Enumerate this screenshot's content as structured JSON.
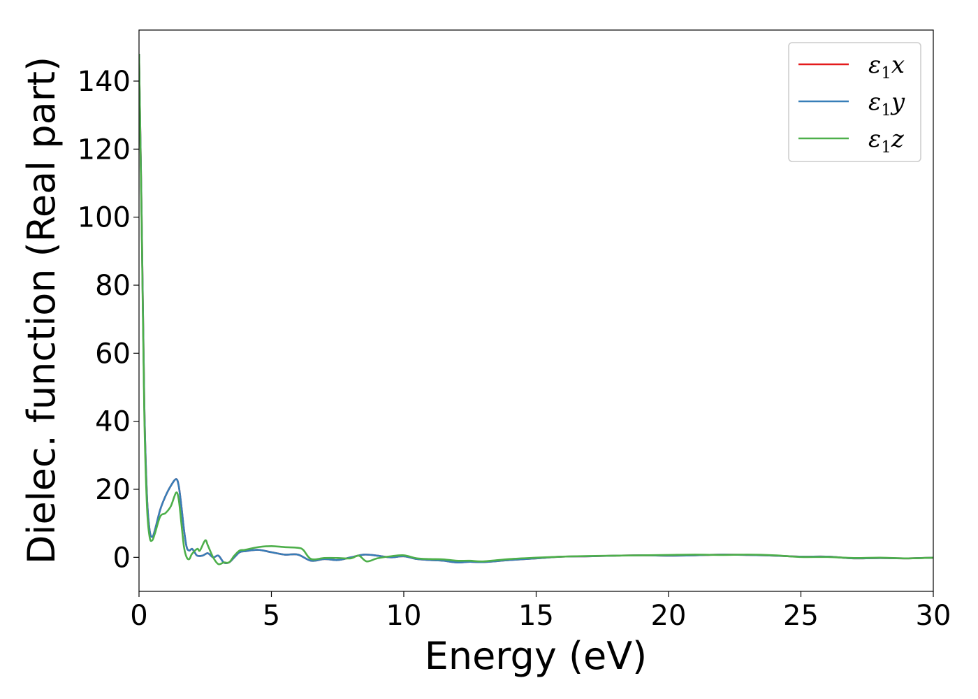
{
  "chart_data": {
    "type": "line",
    "title": "",
    "xlabel": "Energy (eV)",
    "ylabel": "Dielec. function (Real part)",
    "xlim": [
      0,
      30
    ],
    "ylim": [
      -10,
      155
    ],
    "xticks": [
      0,
      5,
      10,
      15,
      20,
      25,
      30
    ],
    "yticks": [
      0,
      20,
      40,
      60,
      80,
      100,
      120,
      140
    ],
    "grid": false,
    "legend_position": "top-right",
    "series": [
      {
        "name": "ε1x",
        "name_parts": {
          "base": "ε",
          "sub": "1",
          "axis": "x"
        },
        "color": "#e41a1c",
        "x": [
          0.0,
          0.1,
          0.2,
          0.3,
          0.4,
          0.5,
          0.6,
          0.8,
          1.0,
          1.2,
          1.4,
          1.5,
          1.6,
          1.7,
          1.8,
          1.9,
          2.0,
          2.1,
          2.2,
          2.4,
          2.6,
          2.8,
          3.0,
          3.2,
          3.4,
          3.6,
          3.8,
          4.0,
          4.5,
          5.0,
          5.5,
          6.0,
          6.5,
          7.0,
          7.5,
          8.0,
          8.5,
          9.0,
          9.5,
          10.0,
          10.5,
          11.0,
          11.5,
          12.0,
          12.5,
          13.0,
          14.0,
          15.0,
          16.0,
          17.0,
          18.0,
          19.0,
          20.0,
          21.0,
          22.0,
          23.0,
          24.0,
          25.0,
          26.0,
          27.0,
          28.0,
          29.0,
          30.0
        ],
        "values": [
          148,
          100,
          45,
          18,
          8,
          6,
          8,
          14,
          18,
          21,
          23,
          21,
          15,
          8,
          3,
          2,
          2.5,
          1.5,
          0.5,
          0.5,
          1.2,
          0,
          0.5,
          -1.5,
          -1.5,
          0,
          1.5,
          1.8,
          2.2,
          1.5,
          0.8,
          0.8,
          -1,
          -0.5,
          -0.8,
          0,
          0.8,
          0.5,
          0,
          0.3,
          -0.5,
          -0.8,
          -1,
          -1.5,
          -1.3,
          -1.4,
          -0.8,
          -0.3,
          0.2,
          0.3,
          0.5,
          0.6,
          0.5,
          0.6,
          0.8,
          0.7,
          0.5,
          0.2,
          0.2,
          -0.3,
          -0.2,
          -0.3,
          -0.1
        ]
      },
      {
        "name": "ε1y",
        "name_parts": {
          "base": "ε",
          "sub": "1",
          "axis": "y"
        },
        "color": "#377eb8",
        "x": [
          0.0,
          0.1,
          0.2,
          0.3,
          0.4,
          0.5,
          0.6,
          0.8,
          1.0,
          1.2,
          1.4,
          1.5,
          1.6,
          1.7,
          1.8,
          1.9,
          2.0,
          2.1,
          2.2,
          2.4,
          2.6,
          2.8,
          3.0,
          3.2,
          3.4,
          3.6,
          3.8,
          4.0,
          4.5,
          5.0,
          5.5,
          6.0,
          6.5,
          7.0,
          7.5,
          8.0,
          8.5,
          9.0,
          9.5,
          10.0,
          10.5,
          11.0,
          11.5,
          12.0,
          12.5,
          13.0,
          14.0,
          15.0,
          16.0,
          17.0,
          18.0,
          19.0,
          20.0,
          21.0,
          22.0,
          23.0,
          24.0,
          25.0,
          26.0,
          27.0,
          28.0,
          29.0,
          30.0
        ],
        "values": [
          148,
          100,
          45,
          18,
          8,
          6,
          8,
          14,
          18,
          21,
          23,
          21,
          15,
          8,
          3,
          2,
          2.5,
          1.5,
          0.5,
          0.5,
          1.2,
          0,
          0.5,
          -1.5,
          -1.5,
          0,
          1.5,
          1.8,
          2.2,
          1.5,
          0.8,
          0.8,
          -1,
          -0.5,
          -0.8,
          0,
          0.8,
          0.5,
          0,
          0.3,
          -0.5,
          -0.8,
          -1,
          -1.5,
          -1.3,
          -1.4,
          -0.8,
          -0.3,
          0.2,
          0.3,
          0.5,
          0.6,
          0.5,
          0.6,
          0.8,
          0.7,
          0.5,
          0.2,
          0.2,
          -0.3,
          -0.2,
          -0.3,
          -0.1
        ]
      },
      {
        "name": "ε1z",
        "name_parts": {
          "base": "ε",
          "sub": "1",
          "axis": "z"
        },
        "color": "#4daf4a",
        "x": [
          0.0,
          0.1,
          0.2,
          0.3,
          0.4,
          0.5,
          0.6,
          0.8,
          1.0,
          1.2,
          1.4,
          1.5,
          1.6,
          1.7,
          1.8,
          1.9,
          2.0,
          2.2,
          2.3,
          2.5,
          2.6,
          2.8,
          3.0,
          3.2,
          3.4,
          3.6,
          3.8,
          4.0,
          4.5,
          5.0,
          5.5,
          6.0,
          6.2,
          6.5,
          7.0,
          7.5,
          8.0,
          8.3,
          8.6,
          9.0,
          9.5,
          10.0,
          10.5,
          11.0,
          11.5,
          12.0,
          12.5,
          13.0,
          14.0,
          15.0,
          16.0,
          17.0,
          18.0,
          19.0,
          20.0,
          21.0,
          22.0,
          23.0,
          24.0,
          25.0,
          26.0,
          27.0,
          28.0,
          29.0,
          30.0
        ],
        "values": [
          148,
          98,
          42,
          15,
          6,
          5,
          7,
          12,
          13,
          15,
          19,
          17,
          10,
          3,
          0,
          -0.5,
          1,
          2.5,
          2,
          5,
          3.5,
          0,
          -2,
          -1.5,
          -1.5,
          0.5,
          2,
          2.2,
          3,
          3.3,
          3,
          2.8,
          2.2,
          -0.5,
          -0.2,
          -0.2,
          -0.3,
          0.5,
          -1.2,
          -0.3,
          0.3,
          0.6,
          -0.3,
          -0.5,
          -0.6,
          -1,
          -1,
          -1.2,
          -0.5,
          -0.1,
          0.2,
          0.4,
          0.5,
          0.6,
          0.7,
          0.8,
          0.7,
          0.8,
          0.6,
          0.1,
          0.1,
          -0.2,
          -0.1,
          -0.3,
          -0.1
        ]
      }
    ]
  }
}
